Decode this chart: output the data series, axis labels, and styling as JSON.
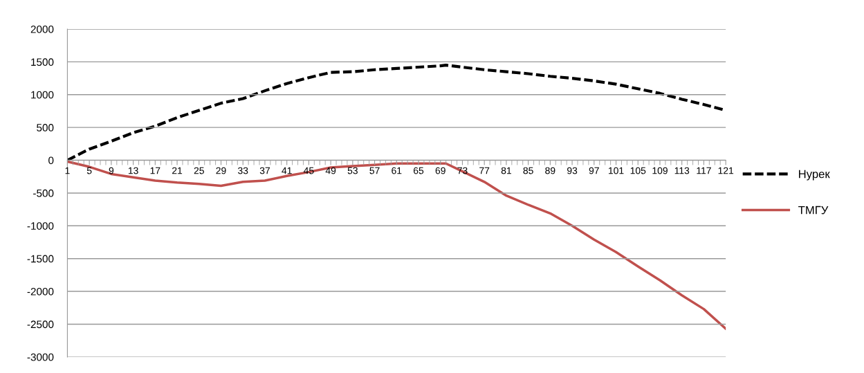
{
  "chart_data": {
    "type": "line",
    "xlim": [
      1,
      121
    ],
    "xticks": [
      1,
      5,
      9,
      13,
      17,
      21,
      25,
      29,
      33,
      37,
      41,
      45,
      49,
      53,
      57,
      61,
      65,
      69,
      73,
      77,
      81,
      85,
      89,
      93,
      97,
      101,
      105,
      109,
      113,
      117,
      121
    ],
    "ylim": [
      -3000,
      2000
    ],
    "yticks": [
      -3000,
      -2500,
      -2000,
      -1500,
      -1000,
      -500,
      0,
      500,
      1000,
      1500,
      2000
    ],
    "grid": "y",
    "legend": "right",
    "series": [
      {
        "name": "Нурек",
        "color": "#000000",
        "line_style": "dashed",
        "x": [
          1,
          5,
          9,
          13,
          17,
          21,
          25,
          29,
          33,
          37,
          41,
          45,
          49,
          53,
          57,
          61,
          65,
          69,
          70,
          73,
          77,
          81,
          85,
          89,
          93,
          97,
          101,
          105,
          109,
          113,
          117,
          121
        ],
        "values": [
          0,
          170,
          290,
          420,
          520,
          650,
          760,
          870,
          940,
          1060,
          1170,
          1260,
          1340,
          1350,
          1380,
          1400,
          1420,
          1440,
          1450,
          1420,
          1380,
          1350,
          1320,
          1280,
          1250,
          1210,
          1160,
          1090,
          1020,
          930,
          850,
          760
        ]
      },
      {
        "name": "ТМГУ",
        "color": "#c0504d",
        "line_style": "solid",
        "x": [
          1,
          5,
          9,
          13,
          17,
          21,
          25,
          29,
          33,
          37,
          41,
          45,
          49,
          53,
          57,
          61,
          65,
          69,
          70,
          73,
          77,
          81,
          85,
          89,
          93,
          97,
          101,
          105,
          109,
          113,
          117,
          121
        ],
        "values": [
          -20,
          -100,
          -210,
          -260,
          -310,
          -340,
          -360,
          -390,
          -330,
          -310,
          -240,
          -180,
          -110,
          -90,
          -70,
          -50,
          -50,
          -50,
          -50,
          -170,
          -330,
          -540,
          -680,
          -810,
          -1000,
          -1210,
          -1400,
          -1620,
          -1830,
          -2060,
          -2270,
          -2570
        ]
      }
    ]
  }
}
